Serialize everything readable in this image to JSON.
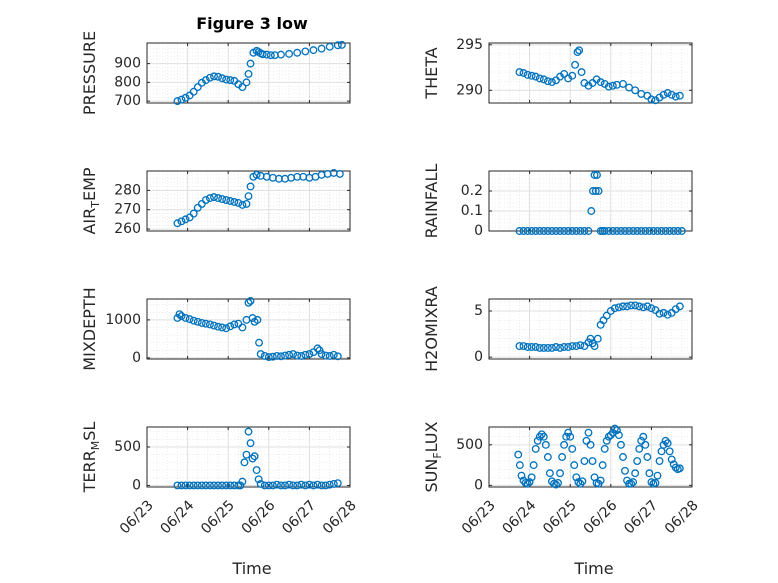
{
  "figure": {
    "title": "Figure 3 low",
    "xlabel": "Time",
    "colors": {
      "marker": "#0072BD",
      "grid": "#DFDFDF",
      "axis": "#262626"
    }
  },
  "chart_data": [
    {
      "type": "scatter",
      "ylabel": "PRESSURE",
      "title": "Figure 3 low",
      "xlim": [
        "06/23",
        "06/28"
      ],
      "ylim": [
        690,
        1010
      ],
      "yticks": [
        700,
        800,
        900
      ],
      "xticks": [
        "06/23",
        "06/24",
        "06/25",
        "06/26",
        "06/27",
        "06/28"
      ],
      "show_xtick_labels": false,
      "grid": true,
      "x": [
        0.75,
        0.85,
        0.95,
        1.05,
        1.15,
        1.25,
        1.35,
        1.45,
        1.55,
        1.65,
        1.75,
        1.85,
        1.95,
        2.05,
        2.15,
        2.25,
        2.35,
        2.45,
        2.5,
        2.55,
        2.62,
        2.7,
        2.75,
        2.8,
        2.85,
        2.95,
        3.05,
        3.15,
        3.3,
        3.5,
        3.7,
        3.9,
        4.1,
        4.3,
        4.5,
        4.7,
        4.8
      ],
      "y": [
        700,
        708,
        718,
        730,
        750,
        775,
        798,
        812,
        825,
        832,
        830,
        822,
        815,
        812,
        808,
        790,
        775,
        800,
        845,
        900,
        958,
        968,
        962,
        955,
        950,
        948,
        945,
        945,
        948,
        952,
        958,
        965,
        972,
        980,
        990,
        998,
        1000
      ]
    },
    {
      "type": "scatter",
      "ylabel": "THETA",
      "xlim": [
        "06/23",
        "06/28"
      ],
      "ylim": [
        288.6,
        295.2
      ],
      "yticks": [
        290,
        295
      ],
      "xticks": [
        "06/23",
        "06/24",
        "06/25",
        "06/26",
        "06/27",
        "06/28"
      ],
      "show_xtick_labels": false,
      "grid": true,
      "x": [
        0.75,
        0.85,
        0.95,
        1.05,
        1.15,
        1.25,
        1.35,
        1.45,
        1.55,
        1.65,
        1.75,
        1.85,
        1.95,
        2.05,
        2.12,
        2.18,
        2.22,
        2.28,
        2.35,
        2.45,
        2.55,
        2.65,
        2.75,
        2.85,
        2.95,
        3.05,
        3.15,
        3.3,
        3.45,
        3.6,
        3.75,
        3.9,
        4.0,
        4.1,
        4.2,
        4.3,
        4.4,
        4.5,
        4.6,
        4.7
      ],
      "y": [
        292.0,
        291.9,
        291.7,
        291.6,
        291.5,
        291.3,
        291.2,
        291.0,
        290.9,
        291.1,
        291.5,
        291.8,
        291.3,
        291.6,
        292.8,
        294.2,
        294.4,
        292.0,
        290.8,
        290.5,
        290.8,
        291.2,
        290.9,
        290.7,
        290.4,
        290.5,
        290.6,
        290.7,
        290.3,
        290.0,
        289.6,
        289.4,
        289.0,
        288.9,
        289.2,
        289.5,
        289.7,
        289.5,
        289.3,
        289.4
      ]
    },
    {
      "type": "scatter",
      "ylabel": "AIR_TEMP",
      "ylabel_parts": [
        "AIR",
        "T",
        "EMP"
      ],
      "xlim": [
        "06/23",
        "06/28"
      ],
      "ylim": [
        259,
        290
      ],
      "yticks": [
        260,
        270,
        280
      ],
      "xticks": [
        "06/23",
        "06/24",
        "06/25",
        "06/26",
        "06/27",
        "06/28"
      ],
      "show_xtick_labels": false,
      "grid": true,
      "x": [
        0.75,
        0.85,
        0.95,
        1.05,
        1.15,
        1.25,
        1.35,
        1.45,
        1.55,
        1.65,
        1.75,
        1.85,
        1.95,
        2.05,
        2.15,
        2.25,
        2.35,
        2.45,
        2.5,
        2.55,
        2.62,
        2.7,
        2.8,
        2.95,
        3.1,
        3.25,
        3.4,
        3.55,
        3.7,
        3.85,
        4.0,
        4.15,
        4.3,
        4.45,
        4.6,
        4.75
      ],
      "y": [
        263,
        264,
        265,
        266,
        268,
        271,
        273,
        275,
        276,
        276.5,
        276,
        275.5,
        275,
        274.5,
        274,
        273.5,
        272.5,
        273,
        277,
        282,
        287,
        288,
        287.5,
        287,
        286.5,
        286,
        286,
        286.5,
        287,
        287,
        286.5,
        287,
        288,
        288.5,
        289,
        288.5
      ]
    },
    {
      "type": "scatter",
      "ylabel": "RAINFALL",
      "xlim": [
        "06/23",
        "06/28"
      ],
      "ylim": [
        0,
        0.3
      ],
      "yticks": [
        0,
        0.1,
        0.2
      ],
      "xticks": [
        "06/23",
        "06/24",
        "06/25",
        "06/26",
        "06/27",
        "06/28"
      ],
      "show_xtick_labels": false,
      "grid": true,
      "x": [
        0.75,
        0.85,
        0.95,
        1.05,
        1.15,
        1.25,
        1.35,
        1.45,
        1.55,
        1.65,
        1.75,
        1.85,
        1.95,
        2.05,
        2.15,
        2.25,
        2.35,
        2.45,
        2.52,
        2.56,
        2.6,
        2.63,
        2.66,
        2.7,
        2.75,
        2.8,
        2.85,
        2.95,
        3.05,
        3.15,
        3.25,
        3.35,
        3.45,
        3.55,
        3.65,
        3.75,
        3.85,
        3.95,
        4.05,
        4.15,
        4.25,
        4.35,
        4.45,
        4.55,
        4.65,
        4.75
      ],
      "y": [
        0,
        0,
        0,
        0,
        0,
        0,
        0,
        0,
        0,
        0,
        0,
        0,
        0,
        0,
        0,
        0,
        0,
        0,
        0.1,
        0.2,
        0.28,
        0.2,
        0.28,
        0.2,
        0,
        0,
        0,
        0,
        0,
        0,
        0,
        0,
        0,
        0,
        0,
        0,
        0,
        0,
        0,
        0,
        0,
        0,
        0,
        0,
        0,
        0
      ]
    },
    {
      "type": "scatter",
      "ylabel": "MIXDEPTH",
      "xlim": [
        "06/23",
        "06/28"
      ],
      "ylim": [
        -30,
        1550
      ],
      "yticks": [
        0,
        1000
      ],
      "xticks": [
        "06/23",
        "06/24",
        "06/25",
        "06/26",
        "06/27",
        "06/28"
      ],
      "show_xtick_labels": false,
      "grid": true,
      "x": [
        0.75,
        0.8,
        0.85,
        0.95,
        1.05,
        1.15,
        1.25,
        1.35,
        1.45,
        1.55,
        1.65,
        1.75,
        1.85,
        1.95,
        2.05,
        2.15,
        2.25,
        2.35,
        2.45,
        2.5,
        2.55,
        2.6,
        2.65,
        2.72,
        2.76,
        2.8,
        2.9,
        3.0,
        3.1,
        3.2,
        3.3,
        3.4,
        3.5,
        3.6,
        3.7,
        3.8,
        3.9,
        4.0,
        4.1,
        4.2,
        4.25,
        4.3,
        4.4,
        4.5,
        4.6,
        4.7
      ],
      "y": [
        1050,
        1150,
        1100,
        1050,
        1020,
        980,
        950,
        920,
        900,
        880,
        850,
        820,
        800,
        780,
        830,
        880,
        900,
        800,
        1000,
        1450,
        1500,
        1050,
        950,
        1000,
        400,
        100,
        50,
        20,
        30,
        50,
        40,
        60,
        80,
        100,
        60,
        50,
        80,
        100,
        150,
        250,
        200,
        100,
        60,
        50,
        80,
        40
      ]
    },
    {
      "type": "scatter",
      "ylabel": "H2OMIXRA",
      "xlim": [
        "06/23",
        "06/28"
      ],
      "ylim": [
        -0.2,
        6.3
      ],
      "yticks": [
        0,
        5
      ],
      "xticks": [
        "06/23",
        "06/24",
        "06/25",
        "06/26",
        "06/27",
        "06/28"
      ],
      "show_xtick_labels": false,
      "grid": true,
      "x": [
        0.75,
        0.85,
        0.95,
        1.05,
        1.15,
        1.25,
        1.35,
        1.45,
        1.55,
        1.65,
        1.75,
        1.85,
        1.95,
        2.05,
        2.15,
        2.25,
        2.35,
        2.45,
        2.5,
        2.55,
        2.6,
        2.68,
        2.75,
        2.82,
        2.9,
        3.0,
        3.1,
        3.2,
        3.3,
        3.4,
        3.5,
        3.6,
        3.7,
        3.8,
        3.9,
        4.0,
        4.1,
        4.2,
        4.3,
        4.4,
        4.5,
        4.6,
        4.7
      ],
      "y": [
        1.2,
        1.2,
        1.1,
        1.1,
        1.1,
        1.0,
        1.0,
        1.0,
        1.0,
        1.1,
        1.0,
        1.1,
        1.1,
        1.2,
        1.2,
        1.3,
        1.2,
        1.6,
        2.0,
        1.5,
        1.2,
        2.0,
        3.5,
        4.0,
        4.5,
        5.0,
        5.3,
        5.4,
        5.5,
        5.5,
        5.6,
        5.6,
        5.5,
        5.4,
        5.5,
        5.3,
        5.1,
        4.7,
        4.8,
        4.6,
        4.8,
        5.2,
        5.5
      ]
    },
    {
      "type": "scatter",
      "ylabel": "TERR_MSL",
      "ylabel_parts": [
        "TERR",
        "M",
        "SL"
      ],
      "xlim": [
        "06/23",
        "06/28"
      ],
      "ylim": [
        -20,
        760
      ],
      "yticks": [
        0,
        500
      ],
      "xticks": [
        "06/23",
        "06/24",
        "06/25",
        "06/26",
        "06/27",
        "06/28"
      ],
      "show_xtick_labels": true,
      "grid": true,
      "x": [
        0.75,
        0.85,
        0.95,
        1.05,
        1.15,
        1.25,
        1.35,
        1.45,
        1.55,
        1.65,
        1.75,
        1.85,
        1.95,
        2.05,
        2.15,
        2.25,
        2.3,
        2.35,
        2.4,
        2.45,
        2.5,
        2.55,
        2.6,
        2.65,
        2.7,
        2.75,
        2.8,
        2.9,
        3.0,
        3.1,
        3.2,
        3.3,
        3.4,
        3.5,
        3.6,
        3.7,
        3.8,
        3.9,
        4.0,
        4.1,
        4.2,
        4.3,
        4.4,
        4.5,
        4.6,
        4.7
      ],
      "y": [
        0,
        0,
        0,
        0,
        0,
        0,
        0,
        0,
        0,
        0,
        0,
        0,
        0,
        0,
        0,
        0,
        0,
        50,
        300,
        400,
        700,
        550,
        350,
        380,
        200,
        80,
        20,
        0,
        0,
        0,
        10,
        0,
        0,
        10,
        0,
        0,
        10,
        0,
        10,
        0,
        10,
        0,
        0,
        10,
        20,
        30
      ]
    },
    {
      "type": "scatter",
      "ylabel": "SUN_FLUX",
      "ylabel_parts": [
        "SUN",
        "F",
        "LUX"
      ],
      "xlim": [
        "06/23",
        "06/28"
      ],
      "ylim": [
        -20,
        720
      ],
      "yticks": [
        0,
        500
      ],
      "xticks": [
        "06/23",
        "06/24",
        "06/25",
        "06/26",
        "06/27",
        "06/28"
      ],
      "show_xtick_labels": true,
      "grid": true,
      "x": [
        0.72,
        0.76,
        0.8,
        0.85,
        0.9,
        0.95,
        1.0,
        1.05,
        1.1,
        1.15,
        1.2,
        1.25,
        1.3,
        1.35,
        1.4,
        1.45,
        1.5,
        1.55,
        1.6,
        1.65,
        1.7,
        1.75,
        1.8,
        1.85,
        1.9,
        1.95,
        2.0,
        2.05,
        2.1,
        2.15,
        2.2,
        2.25,
        2.3,
        2.35,
        2.4,
        2.45,
        2.5,
        2.55,
        2.6,
        2.65,
        2.7,
        2.75,
        2.8,
        2.85,
        2.9,
        2.95,
        3.0,
        3.05,
        3.1,
        3.15,
        3.2,
        3.25,
        3.3,
        3.35,
        3.4,
        3.45,
        3.5,
        3.55,
        3.6,
        3.65,
        3.7,
        3.75,
        3.8,
        3.85,
        3.9,
        3.95,
        4.0,
        4.05,
        4.1,
        4.15,
        4.2,
        4.25,
        4.3,
        4.35,
        4.4,
        4.45,
        4.5,
        4.55,
        4.6,
        4.65,
        4.7
      ],
      "y": [
        380,
        250,
        120,
        60,
        30,
        20,
        40,
        100,
        250,
        450,
        550,
        600,
        630,
        600,
        500,
        350,
        150,
        50,
        20,
        10,
        30,
        150,
        350,
        500,
        600,
        650,
        600,
        450,
        250,
        100,
        40,
        20,
        50,
        300,
        550,
        650,
        500,
        300,
        100,
        30,
        20,
        60,
        250,
        450,
        550,
        600,
        620,
        650,
        700,
        680,
        620,
        500,
        350,
        180,
        60,
        20,
        20,
        40,
        150,
        300,
        450,
        550,
        600,
        500,
        350,
        150,
        40,
        20,
        30,
        120,
        300,
        420,
        500,
        550,
        520,
        420,
        320,
        260,
        220,
        200,
        210
      ]
    }
  ]
}
